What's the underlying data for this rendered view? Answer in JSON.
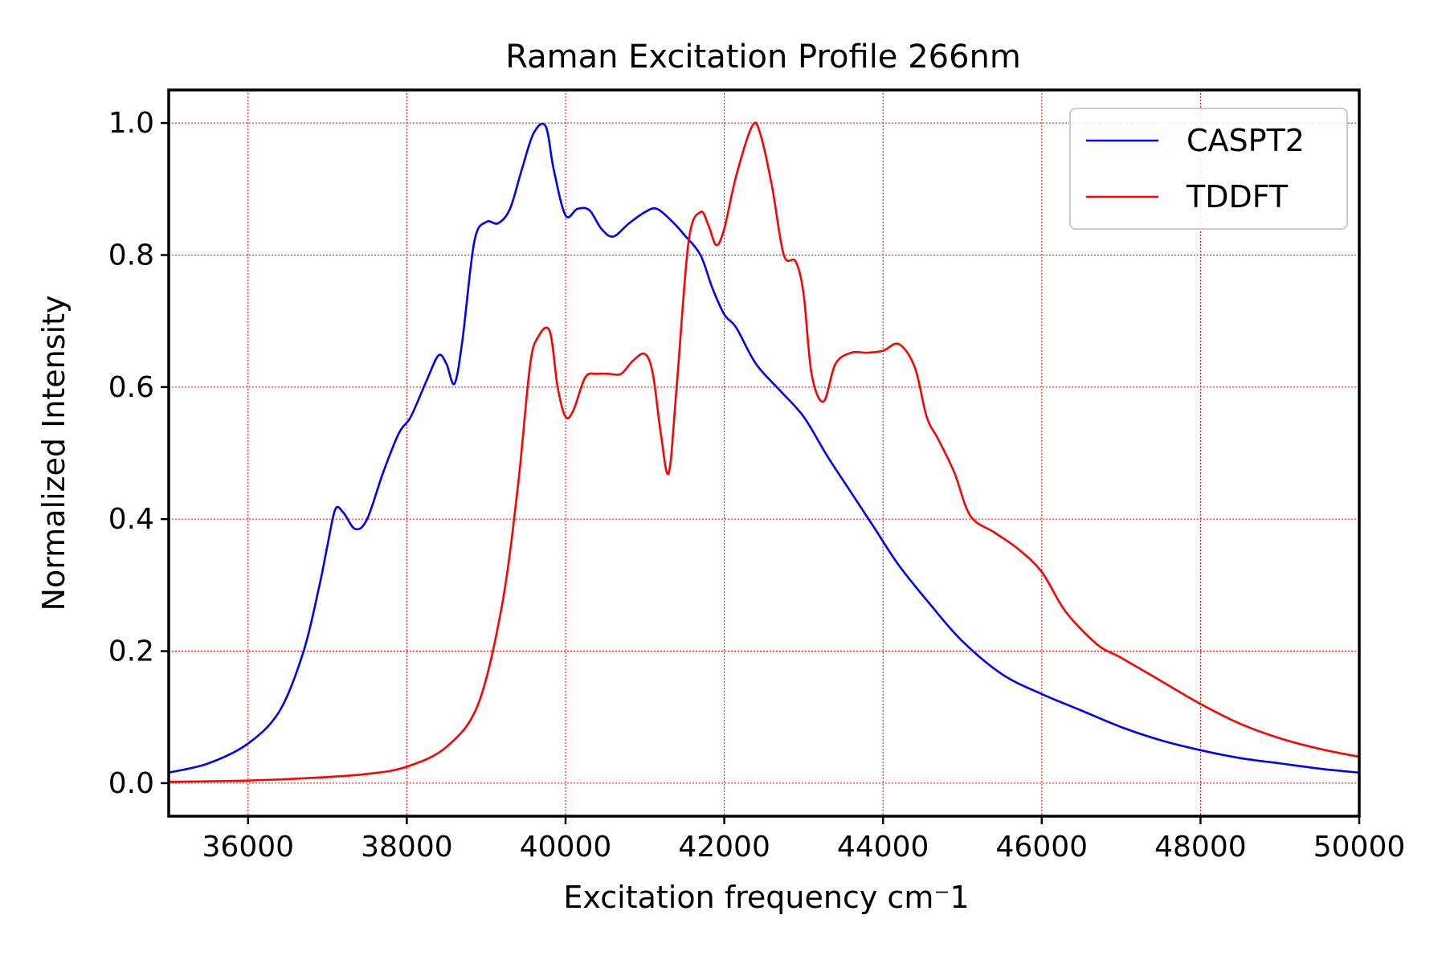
{
  "chart_data": {
    "type": "line",
    "title": "Raman Excitation Profile 266nm",
    "xlabel": "Excitation frequency cm$^-1$",
    "xlabel_display": "Excitation frequency cm⁻1",
    "ylabel": "Normalized Intensity",
    "xlim": [
      35000,
      50000
    ],
    "ylim": [
      -0.05,
      1.05
    ],
    "x_ticks": [
      36000,
      38000,
      40000,
      42000,
      44000,
      46000,
      48000,
      50000
    ],
    "y_ticks": [
      0.0,
      0.2,
      0.4,
      0.6,
      0.8,
      1.0
    ],
    "x_tick_labels": [
      "36000",
      "38000",
      "40000",
      "42000",
      "44000",
      "46000",
      "48000",
      "50000"
    ],
    "y_tick_labels": [
      "0.0",
      "0.2",
      "0.4",
      "0.6",
      "0.8",
      "1.0"
    ],
    "grid": true,
    "grid_color": "#ff0000",
    "legend_position": "top-right",
    "series": [
      {
        "name": "CASPT2",
        "color": "#0000ff",
        "x": [
          35000,
          35500,
          36000,
          36400,
          36700,
          36900,
          37000,
          37100,
          37200,
          37350,
          37500,
          37700,
          37900,
          38050,
          38250,
          38400,
          38500,
          38600,
          38700,
          38850,
          39000,
          39150,
          39300,
          39450,
          39600,
          39750,
          39850,
          40000,
          40150,
          40300,
          40450,
          40600,
          40800,
          41000,
          41150,
          41350,
          41500,
          41700,
          41850,
          42000,
          42150,
          42400,
          42700,
          43000,
          43300,
          43600,
          43900,
          44200,
          44600,
          45000,
          45500,
          46000,
          46500,
          47000,
          47500,
          48000,
          48500,
          49000,
          49500,
          50000
        ],
        "y": [
          0.016,
          0.03,
          0.06,
          0.11,
          0.2,
          0.3,
          0.36,
          0.415,
          0.41,
          0.385,
          0.4,
          0.47,
          0.53,
          0.555,
          0.61,
          0.648,
          0.635,
          0.605,
          0.67,
          0.82,
          0.85,
          0.848,
          0.87,
          0.93,
          0.985,
          0.995,
          0.93,
          0.86,
          0.87,
          0.868,
          0.84,
          0.828,
          0.848,
          0.865,
          0.87,
          0.85,
          0.83,
          0.8,
          0.75,
          0.71,
          0.69,
          0.635,
          0.595,
          0.555,
          0.495,
          0.44,
          0.385,
          0.33,
          0.27,
          0.215,
          0.165,
          0.135,
          0.11,
          0.085,
          0.065,
          0.05,
          0.038,
          0.03,
          0.022,
          0.016
        ]
      },
      {
        "name": "TDDFT",
        "color": "#ff0000",
        "x": [
          35000,
          36000,
          36800,
          37500,
          38000,
          38500,
          38900,
          39200,
          39400,
          39550,
          39650,
          39800,
          39900,
          40000,
          40100,
          40250,
          40400,
          40550,
          40700,
          40850,
          41000,
          41100,
          41200,
          41300,
          41400,
          41550,
          41700,
          41800,
          41900,
          42000,
          42150,
          42350,
          42450,
          42600,
          42750,
          42900,
          43000,
          43100,
          43250,
          43400,
          43600,
          43800,
          44000,
          44200,
          44400,
          44550,
          44700,
          44900,
          45100,
          45400,
          45700,
          46000,
          46300,
          46700,
          47000,
          47500,
          48000,
          48500,
          49000,
          49500,
          50000
        ],
        "y": [
          0.002,
          0.004,
          0.008,
          0.014,
          0.025,
          0.055,
          0.12,
          0.27,
          0.45,
          0.63,
          0.675,
          0.685,
          0.6,
          0.555,
          0.565,
          0.615,
          0.62,
          0.62,
          0.62,
          0.64,
          0.65,
          0.62,
          0.53,
          0.47,
          0.6,
          0.82,
          0.865,
          0.845,
          0.815,
          0.84,
          0.92,
          0.995,
          0.985,
          0.905,
          0.8,
          0.79,
          0.74,
          0.62,
          0.578,
          0.635,
          0.652,
          0.652,
          0.655,
          0.665,
          0.63,
          0.555,
          0.52,
          0.47,
          0.405,
          0.38,
          0.355,
          0.32,
          0.26,
          0.21,
          0.19,
          0.155,
          0.12,
          0.09,
          0.068,
          0.052,
          0.04
        ]
      }
    ]
  }
}
